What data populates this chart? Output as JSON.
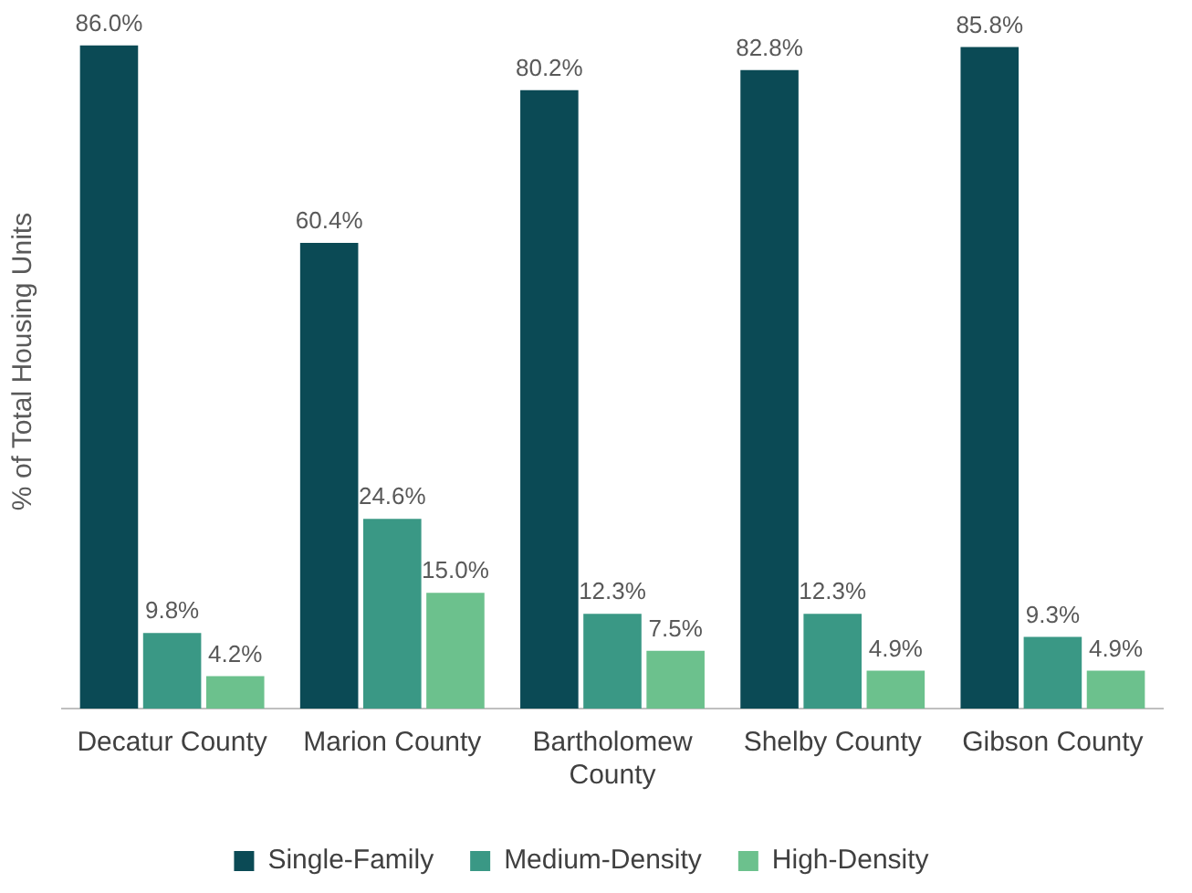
{
  "chart_data": {
    "type": "bar",
    "ylabel": "% of Total Housing Units",
    "categories": [
      "Decatur County",
      "Marion County",
      "Bartholomew County",
      "Shelby County",
      "Gibson County"
    ],
    "series": [
      {
        "name": "Single-Family",
        "color": "#0b4a55",
        "values": [
          86.0,
          60.4,
          80.2,
          82.8,
          85.8
        ],
        "value_labels": [
          "86.0%",
          "60.4%",
          "80.2%",
          "82.8%",
          "85.8%"
        ]
      },
      {
        "name": "Medium-Density",
        "color": "#3a9885",
        "values": [
          9.8,
          24.6,
          12.3,
          12.3,
          9.3
        ],
        "value_labels": [
          "9.8%",
          "24.6%",
          "12.3%",
          "12.3%",
          "9.3%"
        ]
      },
      {
        "name": "High-Density",
        "color": "#6cc18d",
        "values": [
          4.2,
          15.0,
          7.5,
          4.9,
          4.9
        ],
        "value_labels": [
          "4.2%",
          "15.0%",
          "7.5%",
          "4.9%",
          "4.9%"
        ]
      }
    ],
    "grid": false,
    "legend": "bottom"
  }
}
